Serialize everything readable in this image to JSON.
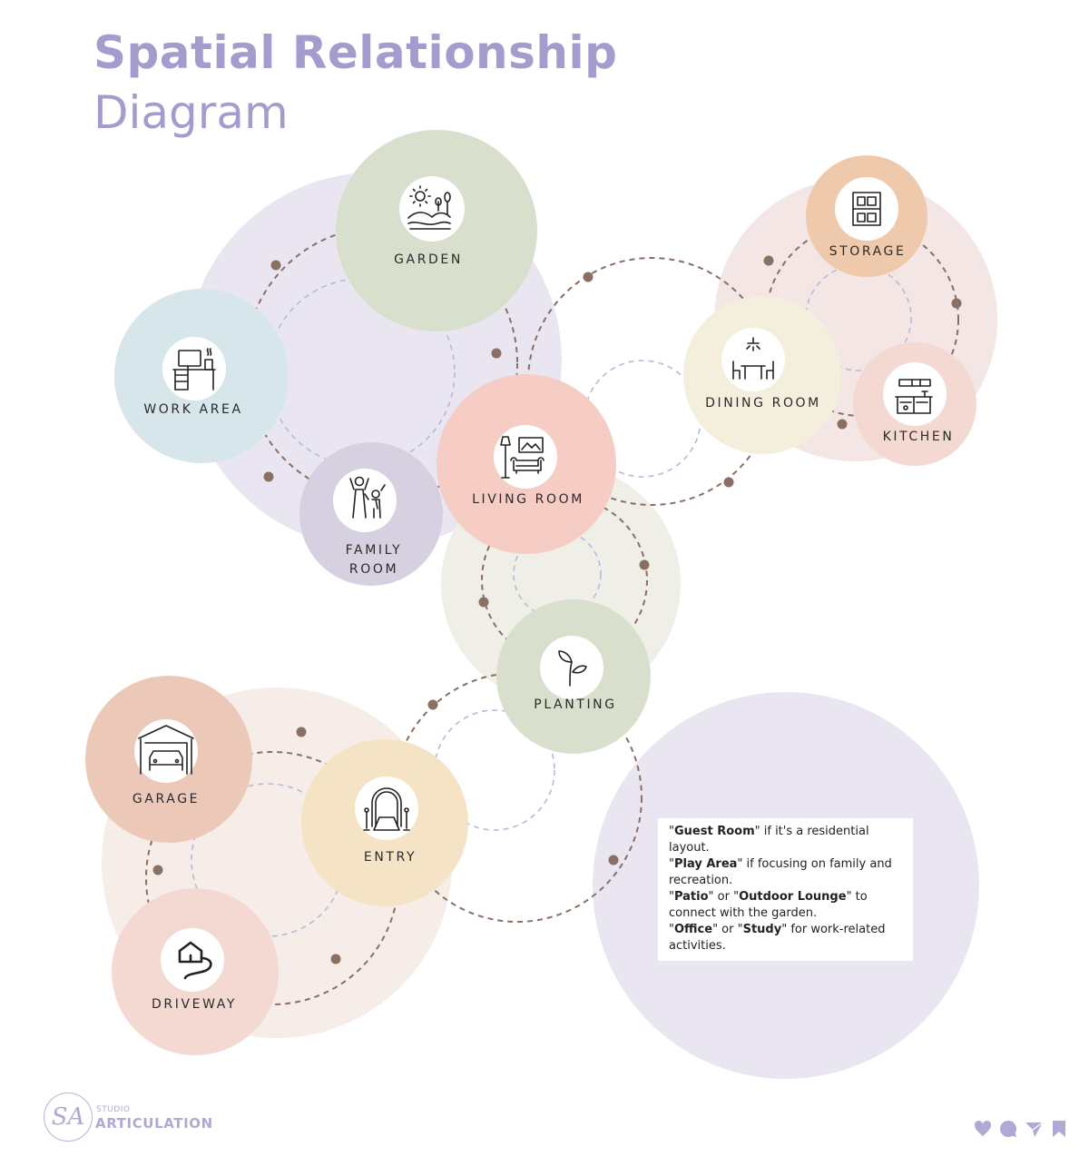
{
  "header": {
    "title": "Spatial Relationship",
    "subtitle": "Diagram"
  },
  "rooms": {
    "garden": "GARDEN",
    "work_area": "WORK AREA",
    "family_room": "FAMILY\nROOM",
    "living_room": "LIVING ROOM",
    "dining_room": "DINING ROOM",
    "storage": "STORAGE",
    "kitchen": "KITCHEN",
    "planting": "PLANTING",
    "garage": "GARAGE",
    "entry": "ENTRY",
    "driveway": "DRIVEWAY"
  },
  "icons": {
    "garden": "garden-icon",
    "work_area": "desk-icon",
    "family_room": "family-icon",
    "living_room": "sofa-icon",
    "dining_room": "dining-table-icon",
    "storage": "shelf-icon",
    "kitchen": "kitchen-icon",
    "planting": "sprout-icon",
    "garage": "garage-icon",
    "entry": "entry-arch-icon",
    "driveway": "driveway-icon"
  },
  "note": {
    "lines": [
      {
        "q1": "\"",
        "bold": "Guest Room",
        "q2": "\"",
        "rest": " if it's a residential layout."
      },
      {
        "q1": "\"",
        "bold": "Play Area",
        "q2": "\"",
        "rest": " if focusing on family and recreation."
      },
      {
        "q1": "\"",
        "bold": "Patio",
        "q2": "\" or \"",
        "bold2": "Outdoor Lounge",
        "rest": "\" to connect with the garden."
      },
      {
        "q1": "\"",
        "bold": "Office",
        "q2": "\" or \"",
        "bold2": "Study",
        "rest": "\" for work-related activities."
      }
    ]
  },
  "footer": {
    "logo_mark": "SA",
    "studio_line1": "STUDIO",
    "studio_line2": "ARTICULATION",
    "social_icons": [
      "heart-icon",
      "chat-bubble-icon",
      "send-icon",
      "bookmark-icon"
    ]
  },
  "colors": {
    "title": "#a59ccd",
    "connector": "#8a6f63",
    "lavender_group": "#e9e6f2",
    "peach_group": "#f3e6e4",
    "beige_group": "#efeee7",
    "garage_group": "#f6ece8"
  }
}
